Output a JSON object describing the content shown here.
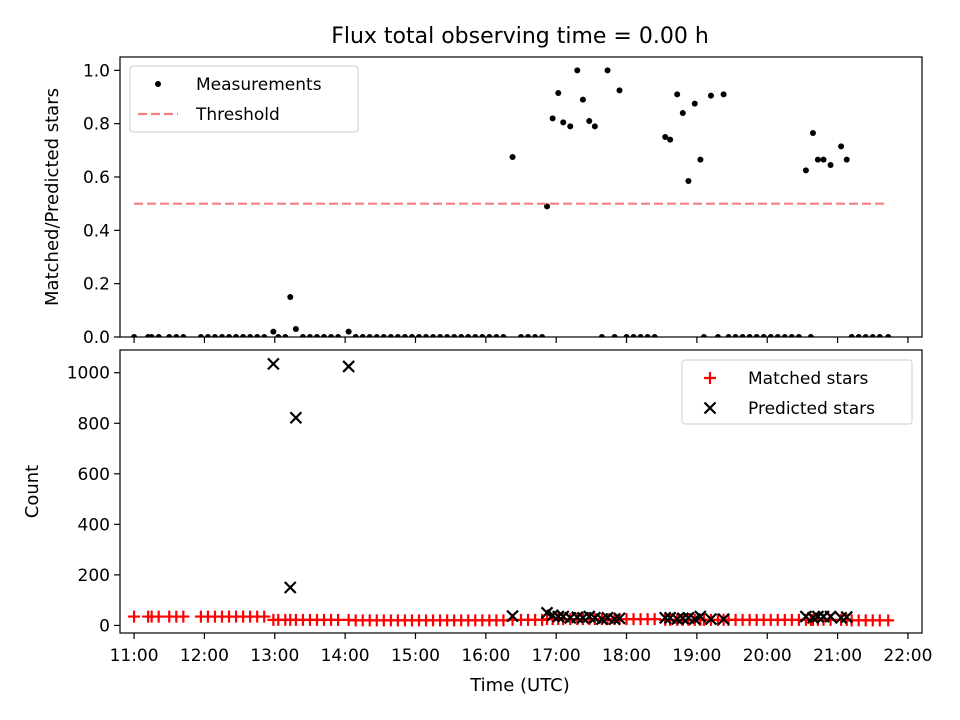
{
  "figure": {
    "title": "Flux total observing time = 0.00 h",
    "xlabel": "Time (UTC)"
  },
  "chart_data": [
    {
      "type": "scatter",
      "ylabel": "Matched/Predicted stars",
      "xlim": [
        10.8,
        22.2
      ],
      "ylim": [
        0,
        1.05
      ],
      "yticks": [
        0.0,
        0.2,
        0.4,
        0.6,
        0.8,
        1.0
      ],
      "ytick_labels": [
        "0.0",
        "0.2",
        "0.4",
        "0.6",
        "0.8",
        "1.0"
      ],
      "legend": {
        "position": "top-left"
      },
      "series": [
        {
          "name": "Measurements",
          "marker": "dot",
          "color": "#000000",
          "points": [
            [
              11.0,
              0
            ],
            [
              11.2,
              0
            ],
            [
              11.25,
              0
            ],
            [
              11.35,
              0
            ],
            [
              11.5,
              0
            ],
            [
              11.6,
              0
            ],
            [
              11.7,
              0
            ],
            [
              11.95,
              0
            ],
            [
              12.05,
              0
            ],
            [
              12.15,
              0
            ],
            [
              12.25,
              0
            ],
            [
              12.35,
              0
            ],
            [
              12.45,
              0
            ],
            [
              12.55,
              0
            ],
            [
              12.65,
              0
            ],
            [
              12.75,
              0
            ],
            [
              12.85,
              0
            ],
            [
              12.98,
              0.02
            ],
            [
              13.05,
              0
            ],
            [
              13.15,
              0
            ],
            [
              13.22,
              0.15
            ],
            [
              13.3,
              0.03
            ],
            [
              13.4,
              0
            ],
            [
              13.5,
              0
            ],
            [
              13.6,
              0
            ],
            [
              13.7,
              0
            ],
            [
              13.8,
              0
            ],
            [
              13.9,
              0
            ],
            [
              14.05,
              0.02
            ],
            [
              14.15,
              0
            ],
            [
              14.25,
              0
            ],
            [
              14.35,
              0
            ],
            [
              14.45,
              0
            ],
            [
              14.55,
              0
            ],
            [
              14.65,
              0
            ],
            [
              14.75,
              0
            ],
            [
              14.85,
              0
            ],
            [
              14.95,
              0
            ],
            [
              15.05,
              0
            ],
            [
              15.15,
              0
            ],
            [
              15.25,
              0
            ],
            [
              15.35,
              0
            ],
            [
              15.45,
              0
            ],
            [
              15.55,
              0
            ],
            [
              15.65,
              0
            ],
            [
              15.75,
              0
            ],
            [
              15.85,
              0
            ],
            [
              15.95,
              0
            ],
            [
              16.05,
              0
            ],
            [
              16.15,
              0
            ],
            [
              16.25,
              0
            ],
            [
              16.38,
              0.675
            ],
            [
              16.5,
              0
            ],
            [
              16.6,
              0
            ],
            [
              16.7,
              0
            ],
            [
              16.8,
              0
            ],
            [
              16.87,
              0.49
            ],
            [
              16.95,
              0.82
            ],
            [
              17.03,
              0.915
            ],
            [
              17.1,
              0.805
            ],
            [
              17.2,
              0.79
            ],
            [
              17.3,
              1.0
            ],
            [
              17.38,
              0.89
            ],
            [
              17.47,
              0.81
            ],
            [
              17.55,
              0.79
            ],
            [
              17.65,
              0
            ],
            [
              17.73,
              1.0
            ],
            [
              17.83,
              0
            ],
            [
              17.9,
              0.925
            ],
            [
              18.0,
              0
            ],
            [
              18.1,
              0
            ],
            [
              18.2,
              0
            ],
            [
              18.3,
              0
            ],
            [
              18.4,
              0
            ],
            [
              18.55,
              0.75
            ],
            [
              18.62,
              0.74
            ],
            [
              18.72,
              0.91
            ],
            [
              18.8,
              0.84
            ],
            [
              18.88,
              0.585
            ],
            [
              18.97,
              0.875
            ],
            [
              19.05,
              0.665
            ],
            [
              19.1,
              0
            ],
            [
              19.2,
              0.905
            ],
            [
              19.3,
              0
            ],
            [
              19.38,
              0.91
            ],
            [
              19.45,
              0
            ],
            [
              19.55,
              0
            ],
            [
              19.65,
              0
            ],
            [
              19.75,
              0
            ],
            [
              19.85,
              0
            ],
            [
              19.95,
              0
            ],
            [
              20.05,
              0
            ],
            [
              20.15,
              0
            ],
            [
              20.25,
              0
            ],
            [
              20.35,
              0
            ],
            [
              20.45,
              0
            ],
            [
              20.55,
              0.625
            ],
            [
              20.62,
              0
            ],
            [
              20.65,
              0.765
            ],
            [
              20.72,
              0.665
            ],
            [
              20.8,
              0.665
            ],
            [
              20.9,
              0.645
            ],
            [
              21.05,
              0.715
            ],
            [
              21.13,
              0.665
            ],
            [
              21.2,
              0
            ],
            [
              21.3,
              0
            ],
            [
              21.4,
              0
            ],
            [
              21.5,
              0
            ],
            [
              21.6,
              0
            ],
            [
              21.72,
              0
            ]
          ]
        },
        {
          "name": "Threshold",
          "marker": "dashed-line",
          "color": "#f08080",
          "x": [
            11.0,
            21.72
          ],
          "y": [
            0.5,
            0.5
          ]
        }
      ]
    },
    {
      "type": "scatter",
      "ylabel": "Count",
      "xlim": [
        10.8,
        22.2
      ],
      "ylim": [
        -30,
        1090
      ],
      "yticks": [
        0,
        200,
        400,
        600,
        800,
        1000
      ],
      "ytick_labels": [
        "0",
        "200",
        "400",
        "600",
        "800",
        "1000"
      ],
      "xticks": [
        11,
        12,
        13,
        14,
        15,
        16,
        17,
        18,
        19,
        20,
        21,
        22
      ],
      "xtick_labels": [
        "11:00",
        "12:00",
        "13:00",
        "14:00",
        "15:00",
        "16:00",
        "17:00",
        "18:00",
        "19:00",
        "20:00",
        "21:00",
        "22:00"
      ],
      "legend": {
        "position": "top-right"
      },
      "series": [
        {
          "name": "Matched stars",
          "marker": "plus",
          "color": "#ff0000",
          "points": [
            [
              11.0,
              35
            ],
            [
              11.2,
              35
            ],
            [
              11.25,
              35
            ],
            [
              11.35,
              35
            ],
            [
              11.5,
              35
            ],
            [
              11.6,
              35
            ],
            [
              11.7,
              35
            ],
            [
              11.95,
              35
            ],
            [
              12.05,
              35
            ],
            [
              12.15,
              35
            ],
            [
              12.25,
              35
            ],
            [
              12.35,
              35
            ],
            [
              12.45,
              35
            ],
            [
              12.55,
              35
            ],
            [
              12.65,
              35
            ],
            [
              12.75,
              35
            ],
            [
              12.85,
              35
            ],
            [
              12.98,
              22
            ],
            [
              13.05,
              22
            ],
            [
              13.15,
              22
            ],
            [
              13.22,
              22
            ],
            [
              13.3,
              22
            ],
            [
              13.4,
              22
            ],
            [
              13.5,
              22
            ],
            [
              13.6,
              22
            ],
            [
              13.7,
              22
            ],
            [
              13.8,
              22
            ],
            [
              13.9,
              22
            ],
            [
              14.05,
              22
            ],
            [
              14.15,
              20
            ],
            [
              14.25,
              20
            ],
            [
              14.35,
              20
            ],
            [
              14.45,
              20
            ],
            [
              14.55,
              20
            ],
            [
              14.65,
              20
            ],
            [
              14.75,
              20
            ],
            [
              14.85,
              20
            ],
            [
              14.95,
              20
            ],
            [
              15.05,
              20
            ],
            [
              15.15,
              20
            ],
            [
              15.25,
              20
            ],
            [
              15.35,
              20
            ],
            [
              15.45,
              20
            ],
            [
              15.55,
              20
            ],
            [
              15.65,
              20
            ],
            [
              15.75,
              20
            ],
            [
              15.85,
              20
            ],
            [
              15.95,
              20
            ],
            [
              16.05,
              20
            ],
            [
              16.15,
              20
            ],
            [
              16.25,
              20
            ],
            [
              16.38,
              22
            ],
            [
              16.5,
              22
            ],
            [
              16.6,
              22
            ],
            [
              16.7,
              22
            ],
            [
              16.8,
              22
            ],
            [
              16.87,
              25
            ],
            [
              16.95,
              25
            ],
            [
              17.03,
              25
            ],
            [
              17.1,
              25
            ],
            [
              17.2,
              25
            ],
            [
              17.3,
              25
            ],
            [
              17.38,
              25
            ],
            [
              17.47,
              25
            ],
            [
              17.55,
              25
            ],
            [
              17.65,
              25
            ],
            [
              17.73,
              25
            ],
            [
              17.83,
              25
            ],
            [
              17.9,
              25
            ],
            [
              18.0,
              25
            ],
            [
              18.1,
              25
            ],
            [
              18.2,
              25
            ],
            [
              18.3,
              25
            ],
            [
              18.4,
              25
            ],
            [
              18.55,
              22
            ],
            [
              18.62,
              22
            ],
            [
              18.72,
              22
            ],
            [
              18.8,
              22
            ],
            [
              18.88,
              22
            ],
            [
              18.97,
              22
            ],
            [
              19.05,
              22
            ],
            [
              19.1,
              22
            ],
            [
              19.2,
              22
            ],
            [
              19.3,
              22
            ],
            [
              19.38,
              22
            ],
            [
              19.45,
              22
            ],
            [
              19.55,
              22
            ],
            [
              19.65,
              22
            ],
            [
              19.75,
              22
            ],
            [
              19.85,
              22
            ],
            [
              19.95,
              22
            ],
            [
              20.05,
              22
            ],
            [
              20.15,
              22
            ],
            [
              20.25,
              22
            ],
            [
              20.35,
              22
            ],
            [
              20.45,
              22
            ],
            [
              20.55,
              22
            ],
            [
              20.62,
              22
            ],
            [
              20.65,
              22
            ],
            [
              20.72,
              22
            ],
            [
              20.8,
              22
            ],
            [
              20.9,
              22
            ],
            [
              21.05,
              22
            ],
            [
              21.13,
              22
            ],
            [
              21.2,
              20
            ],
            [
              21.3,
              20
            ],
            [
              21.4,
              20
            ],
            [
              21.5,
              20
            ],
            [
              21.6,
              20
            ],
            [
              21.72,
              20
            ]
          ]
        },
        {
          "name": "Predicted stars",
          "marker": "x",
          "color": "#000000",
          "points": [
            [
              12.98,
              1035
            ],
            [
              13.22,
              150
            ],
            [
              13.3,
              822
            ],
            [
              14.05,
              1025
            ],
            [
              16.38,
              37
            ],
            [
              16.87,
              50
            ],
            [
              16.95,
              40
            ],
            [
              17.03,
              35
            ],
            [
              17.1,
              35
            ],
            [
              17.2,
              30
            ],
            [
              17.3,
              32
            ],
            [
              17.38,
              30
            ],
            [
              17.47,
              35
            ],
            [
              17.55,
              30
            ],
            [
              17.65,
              25
            ],
            [
              17.73,
              30
            ],
            [
              17.83,
              25
            ],
            [
              17.9,
              28
            ],
            [
              18.55,
              30
            ],
            [
              18.62,
              30
            ],
            [
              18.72,
              25
            ],
            [
              18.8,
              28
            ],
            [
              18.88,
              30
            ],
            [
              18.97,
              25
            ],
            [
              19.05,
              35
            ],
            [
              19.2,
              25
            ],
            [
              19.38,
              25
            ],
            [
              20.55,
              35
            ],
            [
              20.65,
              30
            ],
            [
              20.72,
              35
            ],
            [
              20.8,
              35
            ],
            [
              20.9,
              35
            ],
            [
              21.05,
              30
            ],
            [
              21.13,
              33
            ]
          ]
        }
      ]
    }
  ]
}
